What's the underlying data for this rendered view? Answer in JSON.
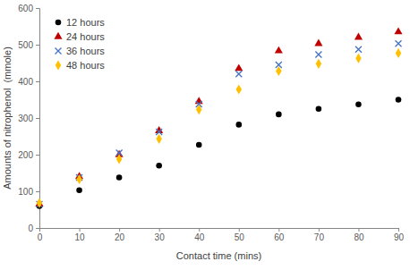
{
  "chart_data": {
    "type": "scatter",
    "x_label": "Contact time (mins)",
    "y_label": "Amounts of nitrophenol  (mmole)",
    "x": [
      0,
      10,
      20,
      30,
      40,
      50,
      60,
      70,
      80,
      90
    ],
    "series": [
      {
        "name": "12 hours",
        "color": "#000000",
        "marker": "circle",
        "values": [
          60,
          103,
          138,
          170,
          227,
          282,
          310,
          325,
          337,
          350
        ]
      },
      {
        "name": "24 hours",
        "color": "#c00000",
        "marker": "triangle",
        "values": [
          65,
          140,
          200,
          265,
          345,
          435,
          483,
          503,
          520,
          535
        ]
      },
      {
        "name": "36 hours",
        "color": "#4472c4",
        "marker": "x",
        "values": [
          65,
          138,
          205,
          262,
          338,
          420,
          445,
          473,
          487,
          503
        ]
      },
      {
        "name": "48 hours",
        "color": "#ffc000",
        "marker": "diamond",
        "values": [
          68,
          133,
          188,
          243,
          323,
          378,
          428,
          448,
          463,
          477
        ]
      }
    ],
    "xlim": [
      0,
      90
    ],
    "xticks": [
      0,
      10,
      20,
      30,
      40,
      50,
      60,
      70,
      80,
      90
    ],
    "ylim": [
      0,
      600
    ],
    "yticks": [
      0,
      100,
      200,
      300,
      400,
      500,
      600
    ],
    "grid": false,
    "legend": "top-left"
  }
}
